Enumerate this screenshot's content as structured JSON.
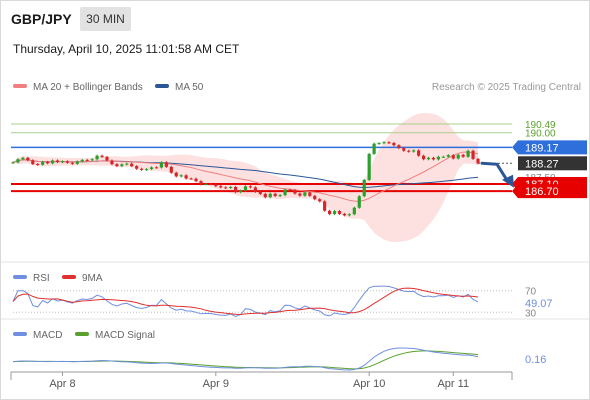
{
  "header": {
    "symbol": "GBP/JPY",
    "timeframe": "30 MIN",
    "datetime": "Thursday, April 10, 2025 11:01:58 AM CET"
  },
  "legend": {
    "ma20_bb": "MA 20 + Bollinger Bands",
    "ma50": "MA 50",
    "credit": "Research © 2025 Trading Central",
    "rsi": "RSI",
    "rsi_ma": "9MA",
    "macd": "MACD",
    "macd_signal": "MACD Signal"
  },
  "colors": {
    "ma20": "#f08080",
    "ma50": "#2b5797",
    "bollinger_fill": "#fde0e0",
    "candle_up": "#2ca02c",
    "candle_down": "#d62728",
    "resistance": "#a8d08d",
    "pivot": "#2f6fdc",
    "support": "#e60000",
    "rsi": "#6f8fe0",
    "rsi_ma": "#e03030",
    "macd": "#6f8fe0",
    "macd_signal": "#5aa02c"
  },
  "chart_data": [
    {
      "type": "candlestick",
      "title": "GBP/JPY",
      "x_tick_labels": [
        "Apr 8",
        "Apr 9",
        "Apr 10",
        "Apr 11"
      ],
      "ylim": [
        184.5,
        191.0
      ],
      "levels": [
        {
          "label": "190.49",
          "value": 190.49,
          "kind": "resistance"
        },
        {
          "label": "190.00",
          "value": 190.0,
          "kind": "resistance"
        },
        {
          "label": "189.17",
          "value": 189.17,
          "kind": "pivot"
        },
        {
          "label": "188.27",
          "value": 188.27,
          "kind": "last"
        },
        {
          "label": "187.50",
          "value": 187.5,
          "kind": "hidden"
        },
        {
          "label": "187.10",
          "value": 187.1,
          "kind": "support"
        },
        {
          "label": "186.70",
          "value": 186.7,
          "kind": "support"
        }
      ],
      "last_price": 188.27,
      "forecast": {
        "from": 188.27,
        "to": 187.0
      },
      "closes": [
        188.32,
        188.5,
        188.58,
        188.44,
        188.23,
        188.19,
        188.35,
        188.27,
        188.43,
        188.34,
        188.38,
        188.3,
        188.24,
        188.37,
        188.46,
        188.44,
        188.5,
        188.7,
        188.63,
        188.43,
        188.22,
        188.11,
        188.21,
        188.25,
        188.11,
        187.96,
        187.9,
        187.94,
        188.04,
        188.03,
        188.33,
        188.07,
        187.74,
        187.53,
        187.59,
        187.41,
        187.4,
        187.26,
        187.08,
        187.1,
        187.09,
        186.98,
        186.91,
        186.88,
        186.93,
        186.64,
        186.72,
        186.97,
        186.91,
        186.66,
        186.54,
        186.35,
        186.55,
        186.42,
        186.47,
        186.78,
        186.75,
        186.56,
        186.44,
        186.62,
        186.43,
        186.24,
        186.12,
        185.59,
        185.4,
        185.57,
        185.41,
        185.33,
        185.39,
        185.76,
        186.41,
        187.33,
        188.8,
        189.38,
        189.41,
        189.46,
        189.42,
        189.29,
        189.13,
        188.98,
        188.93,
        189.0,
        188.7,
        188.5,
        188.58,
        188.49,
        188.64,
        188.64,
        188.73,
        188.54,
        188.75,
        188.64,
        188.98,
        188.52,
        188.27
      ],
      "opens": [
        188.3,
        188.32,
        188.5,
        188.58,
        188.44,
        188.23,
        188.19,
        188.35,
        188.27,
        188.43,
        188.34,
        188.38,
        188.3,
        188.24,
        188.37,
        188.46,
        188.44,
        188.5,
        188.7,
        188.63,
        188.43,
        188.22,
        188.11,
        188.21,
        188.25,
        188.11,
        187.96,
        187.9,
        187.94,
        188.04,
        188.03,
        188.33,
        188.07,
        187.74,
        187.53,
        187.59,
        187.41,
        187.4,
        187.26,
        187.08,
        187.1,
        187.09,
        186.98,
        186.91,
        186.88,
        186.93,
        186.64,
        186.72,
        186.97,
        186.91,
        186.66,
        186.54,
        186.35,
        186.55,
        186.42,
        186.47,
        186.78,
        186.75,
        186.56,
        186.44,
        186.62,
        186.43,
        186.24,
        186.12,
        185.59,
        185.4,
        185.57,
        185.41,
        185.33,
        185.39,
        185.76,
        186.41,
        187.33,
        188.8,
        189.38,
        189.41,
        189.46,
        189.42,
        189.29,
        189.13,
        188.98,
        188.93,
        189.0,
        188.7,
        188.5,
        188.58,
        188.49,
        188.64,
        188.64,
        188.73,
        188.54,
        188.75,
        188.64,
        188.98,
        188.52
      ]
    },
    {
      "type": "line",
      "title": "RSI",
      "current_value": 49.07,
      "y_tick_labels": [
        "70",
        "30"
      ],
      "ylim": [
        25,
        75
      ]
    },
    {
      "type": "line",
      "title": "MACD",
      "current_value": 0.16
    }
  ]
}
